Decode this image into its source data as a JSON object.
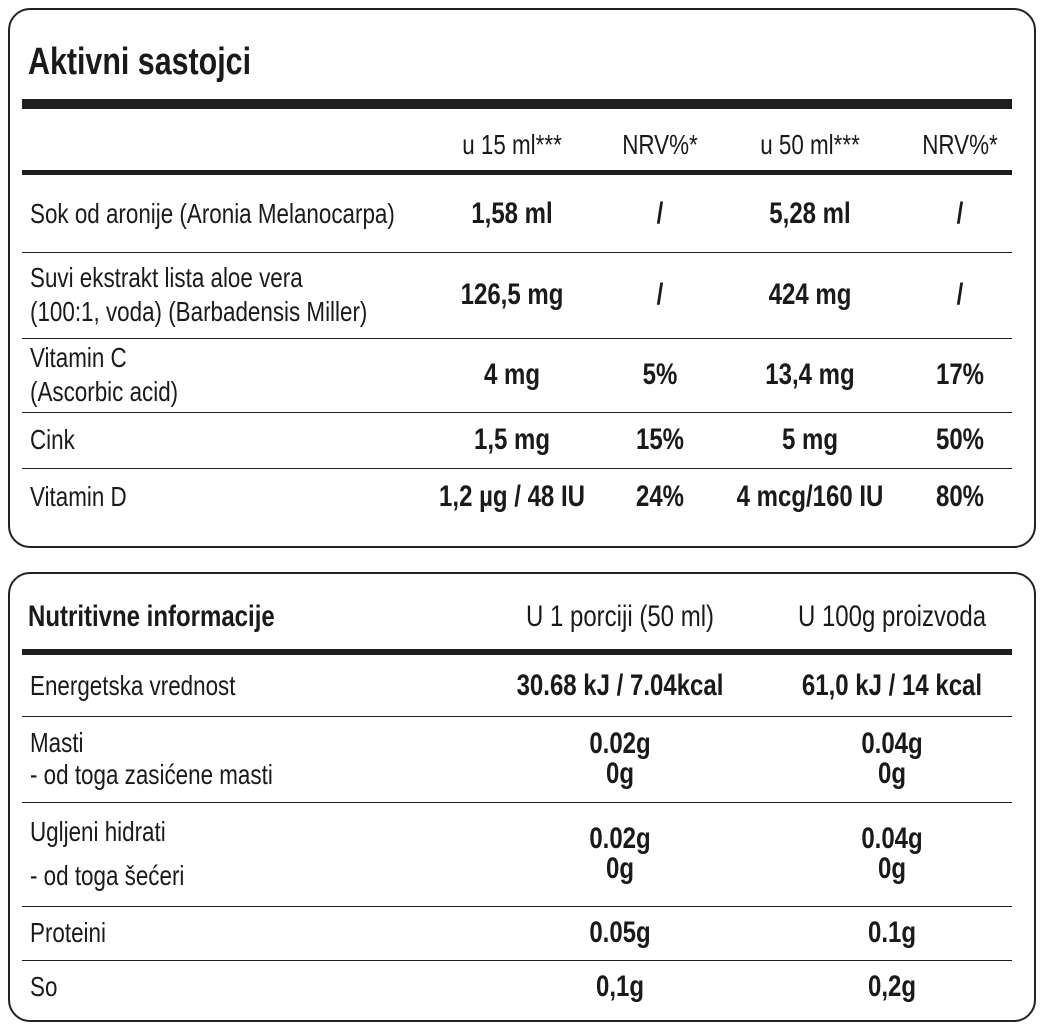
{
  "active": {
    "title": "Aktivni sastojci",
    "headers": [
      "u 15 ml***",
      "NRV%*",
      "u 50 ml***",
      "NRV%*"
    ],
    "rows": [
      {
        "name": [
          "Sok od aronije (Aronia Melanocarpa)"
        ],
        "values": [
          "1,58 ml",
          "/",
          "5,28 ml",
          "/"
        ]
      },
      {
        "name": [
          "Suvi ekstrakt lista aloe vera",
          "(100:1, voda) (Barbadensis Miller)"
        ],
        "values": [
          "126,5 mg",
          "/",
          "424 mg",
          "/"
        ]
      },
      {
        "name": [
          "Vitamin C",
          "(Ascorbic acid)"
        ],
        "values": [
          "4 mg",
          "5%",
          "13,4 mg",
          "17%"
        ]
      },
      {
        "name": [
          "Cink"
        ],
        "values": [
          "1,5 mg",
          "15%",
          "5 mg",
          "50%"
        ]
      },
      {
        "name": [
          "Vitamin D"
        ],
        "values": [
          "1,2 µg / 48 IU",
          "24%",
          "4 mcg/160 IU",
          "80%"
        ]
      }
    ]
  },
  "nutrition": {
    "title": "Nutritivne informacije",
    "headers": [
      "U 1 porciji (50 ml)",
      "U 100g proizvoda"
    ],
    "rows": [
      {
        "name": [
          "Energetska vrednost"
        ],
        "per_serving": [
          "30.68 kJ / 7.04kcal"
        ],
        "per_100g": [
          "61,0 kJ / 14 kcal"
        ]
      },
      {
        "name": [
          "Masti",
          "- od toga zasićene masti"
        ],
        "per_serving": [
          "0.02g",
          "0g"
        ],
        "per_100g": [
          "0.04g",
          "0g"
        ]
      },
      {
        "name": [
          "Ugljeni hidrati",
          "- od toga šećeri"
        ],
        "per_serving": [
          "0.02g",
          "0g"
        ],
        "per_100g": [
          "0.04g",
          "0g"
        ]
      },
      {
        "name": [
          "Proteini"
        ],
        "per_serving": [
          "0.05g"
        ],
        "per_100g": [
          "0.1g"
        ]
      },
      {
        "name": [
          "So"
        ],
        "per_serving": [
          "0,1g"
        ],
        "per_100g": [
          "0,2g"
        ]
      }
    ]
  }
}
